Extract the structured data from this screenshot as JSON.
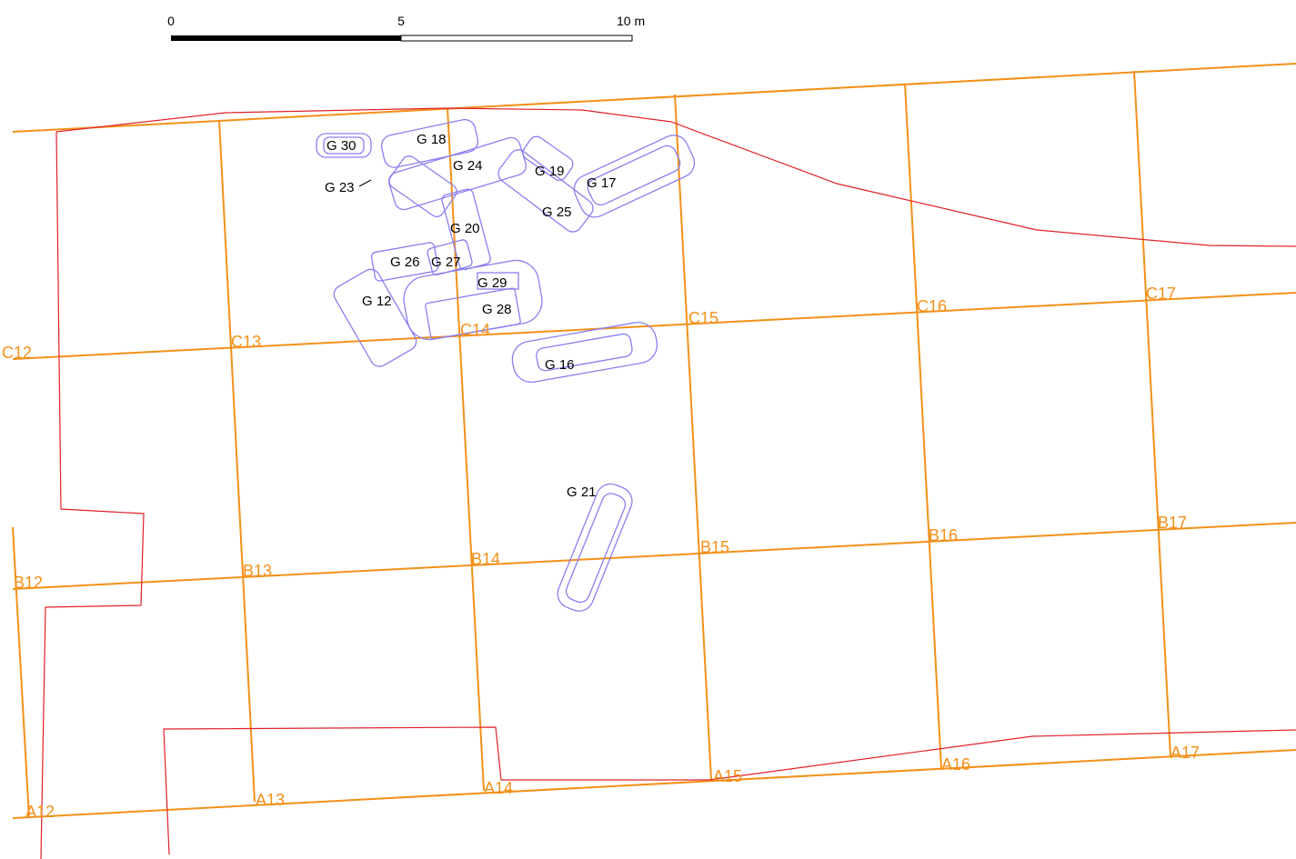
{
  "scale": {
    "labels": [
      "0",
      "5",
      "10 m"
    ]
  },
  "grid_labels": [
    "C12",
    "C13",
    "C14",
    "C15",
    "C16",
    "C17",
    "B12",
    "B13",
    "B14",
    "B15",
    "B16",
    "B17",
    "A12",
    "A13",
    "A14",
    "A15",
    "A16",
    "A17"
  ],
  "graves": [
    "G 30",
    "G 18",
    "G 24",
    "G 19",
    "G 17",
    "G 23",
    "G 25",
    "G 20",
    "G 26",
    "G 27",
    "G 29",
    "G 12",
    "G 28",
    "G 16",
    "G 21"
  ]
}
